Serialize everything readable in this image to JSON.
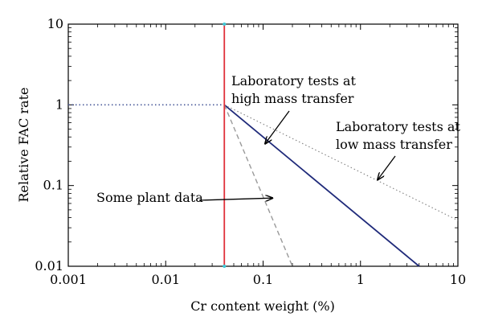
{
  "chart_data": {
    "type": "line",
    "title": "",
    "xlabel": "Cr content weight (%)",
    "ylabel": "Relative FAC rate",
    "x_scale": "log",
    "y_scale": "log",
    "xlim": [
      0.001,
      10
    ],
    "ylim": [
      0.01,
      10
    ],
    "x_ticks": [
      "0.001",
      "0.01",
      "0.1",
      "1",
      "10"
    ],
    "y_ticks": [
      "0.01",
      "0.1",
      "1",
      "10"
    ],
    "grid": false,
    "legend": "none",
    "colors": {
      "high_mass": "#1f2a7a",
      "low_mass": "#8a8a8a",
      "plant": "#9a9a9a",
      "threshold": "#e0303a",
      "baseline": "#4a5a9a",
      "threshold_end": "#3fc7d6"
    },
    "series": [
      {
        "key": "baseline",
        "style": "dotted",
        "x": [
          0.001,
          0.04
        ],
        "y": [
          1,
          1
        ]
      },
      {
        "key": "high_mass",
        "style": "solid",
        "x": [
          0.04,
          4
        ],
        "y": [
          1,
          0.01
        ]
      },
      {
        "key": "low_mass",
        "style": "dotted",
        "x": [
          0.04,
          10
        ],
        "y": [
          1,
          0.037
        ]
      },
      {
        "key": "plant",
        "style": "dashed",
        "x": [
          0.04,
          0.2
        ],
        "y": [
          1,
          0.01
        ]
      }
    ],
    "threshold_x": 0.04,
    "annotations": [
      {
        "key": "high",
        "lines": [
          "Laboratory tests at",
          "high mass transfer"
        ],
        "arrow_to": [
          0.105,
          0.33
        ]
      },
      {
        "key": "low",
        "lines": [
          "Laboratory tests at",
          "low mass transfer"
        ],
        "arrow_to": [
          1.5,
          0.118
        ]
      },
      {
        "key": "plant",
        "lines": [
          "Some plant data"
        ],
        "arrow_to": [
          0.125,
          0.07
        ]
      }
    ]
  }
}
